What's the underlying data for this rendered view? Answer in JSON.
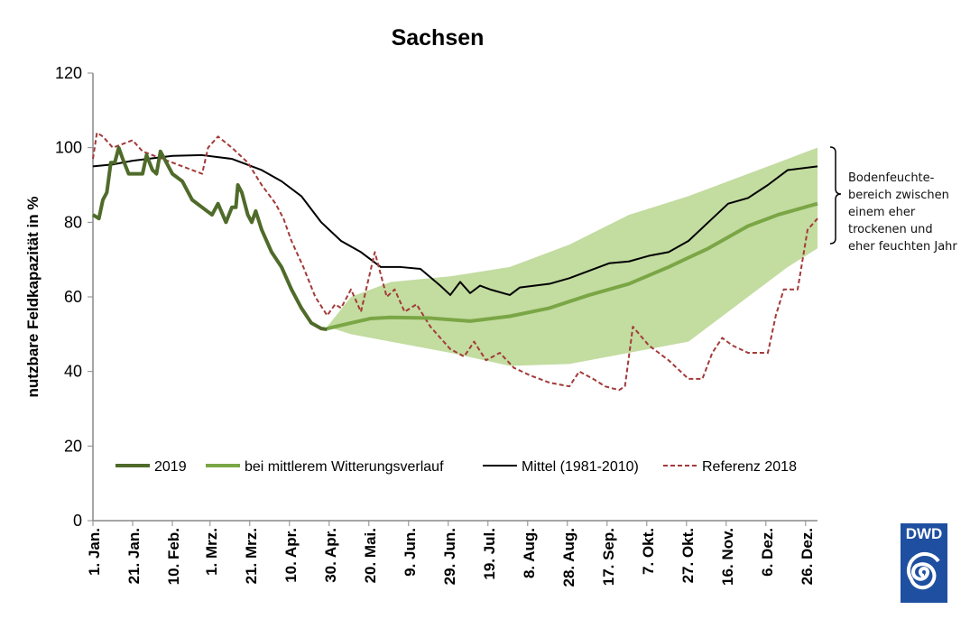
{
  "chart_data": {
    "type": "line",
    "title": "Sachsen",
    "xlabel": "",
    "ylabel": "nutzbare Feldkapazität in %",
    "ylim": [
      0,
      120
    ],
    "yticks": [
      0,
      20,
      40,
      60,
      80,
      100,
      120
    ],
    "x_unit": "day of year",
    "xlim": [
      0,
      365
    ],
    "xtick_days": [
      0,
      20,
      40,
      59,
      79,
      99,
      119,
      139,
      159,
      179,
      199,
      219,
      239,
      259,
      279,
      299,
      319,
      339,
      359
    ],
    "xtick_labels": [
      "1. Jan.",
      "21. Jan.",
      "10. Feb.",
      "1. Mrz.",
      "21. Mrz.",
      "10. Apr.",
      "30. Apr.",
      "20. Mai.",
      "9. Jun.",
      "29. Jun.",
      "19. Jul.",
      "8. Aug.",
      "28. Aug.",
      "17. Sep.",
      "7. Okt.",
      "27. Okt.",
      "16. Nov.",
      "6. Dez.",
      "26. Dez."
    ],
    "legend_position": "bottom-inside",
    "band": {
      "name": "Bodenfeuchtebereich",
      "color": "#c3dca0",
      "x": [
        118,
        130,
        150,
        180,
        210,
        240,
        270,
        300,
        330,
        350,
        365
      ],
      "lower": [
        52,
        50,
        48,
        45,
        41.5,
        42,
        45,
        48,
        60,
        68,
        73
      ],
      "upper": [
        52,
        60,
        64,
        65.5,
        68,
        74,
        82,
        87,
        93,
        97,
        100
      ]
    },
    "series": [
      {
        "name": "2019",
        "color": "#4f6b2a",
        "width": 4,
        "dash": "",
        "x": [
          0,
          3,
          5,
          7,
          9,
          11,
          13,
          15,
          18,
          25,
          27,
          30,
          32,
          34,
          36,
          40,
          45,
          50,
          55,
          60,
          63,
          67,
          70,
          72,
          73,
          75,
          78,
          80,
          82,
          85,
          90,
          95,
          100,
          105,
          110,
          115,
          118
        ],
        "y": [
          82,
          81,
          86,
          88,
          96,
          96,
          100,
          97,
          93,
          93,
          98,
          94,
          93,
          99,
          97,
          93,
          91,
          86,
          84,
          82,
          85,
          80,
          84,
          84,
          90,
          88,
          82,
          80,
          83,
          78,
          72,
          68,
          62,
          57,
          53,
          51.5,
          51.3
        ]
      },
      {
        "name": "bei mittlerem Witterungsverlauf",
        "color": "#7aa645",
        "width": 4,
        "dash": "",
        "x": [
          118,
          130,
          140,
          150,
          170,
          190,
          210,
          230,
          250,
          270,
          290,
          310,
          330,
          345,
          365
        ],
        "y": [
          51.5,
          53,
          54.2,
          54.5,
          54.3,
          53.5,
          54.8,
          57,
          60.5,
          63.5,
          68,
          73,
          79,
          82,
          85
        ]
      },
      {
        "name": "Mittel (1981-2010)",
        "color": "#000000",
        "width": 2,
        "dash": "",
        "x": [
          0,
          10,
          20,
          40,
          55,
          70,
          85,
          95,
          105,
          115,
          125,
          135,
          145,
          155,
          165,
          175,
          180,
          185,
          190,
          195,
          200,
          210,
          215,
          230,
          240,
          250,
          260,
          270,
          280,
          290,
          300,
          310,
          320,
          330,
          340,
          350,
          365
        ],
        "y": [
          95,
          95.5,
          96.5,
          97.8,
          98,
          97,
          94,
          91,
          87,
          80,
          75,
          72,
          68,
          68,
          67.5,
          63,
          60.5,
          64,
          61,
          63,
          62,
          60.5,
          62.5,
          63.5,
          65,
          67,
          69,
          69.5,
          71,
          72,
          75,
          80,
          85,
          86.5,
          90,
          94,
          95
        ]
      },
      {
        "name": "Referenz 2018",
        "color": "#a33a3a",
        "width": 2,
        "dash": "5,3",
        "x": [
          0,
          2,
          5,
          10,
          15,
          20,
          25,
          35,
          45,
          55,
          58,
          63,
          70,
          78,
          85,
          92,
          96,
          100,
          106,
          112,
          118,
          122,
          125,
          130,
          135,
          142,
          148,
          152,
          157,
          163,
          170,
          180,
          187,
          192,
          198,
          205,
          212,
          220,
          230,
          240,
          245,
          252,
          258,
          265,
          268,
          272,
          280,
          290,
          300,
          307,
          312,
          317,
          322,
          330,
          340,
          344,
          348,
          355,
          360,
          365
        ],
        "y": [
          97,
          104,
          103,
          100,
          101,
          102,
          99,
          97,
          95,
          93,
          100,
          103,
          100,
          96,
          90,
          85,
          81,
          75,
          68,
          60,
          55,
          58,
          57,
          62,
          56,
          72,
          60,
          62,
          56,
          58,
          52,
          46,
          44,
          48,
          43,
          45,
          41,
          39,
          37,
          36,
          40,
          38,
          36,
          35,
          36,
          52,
          47,
          43,
          38,
          38,
          45,
          49,
          47,
          45,
          45,
          55,
          62,
          62,
          78,
          81
        ]
      }
    ],
    "annotation": "Bodenfeuchte-\nbereich zwischen\neinem eher\ntrockenen und\neher feuchten Jahr"
  },
  "logo": {
    "text": "DWD"
  }
}
